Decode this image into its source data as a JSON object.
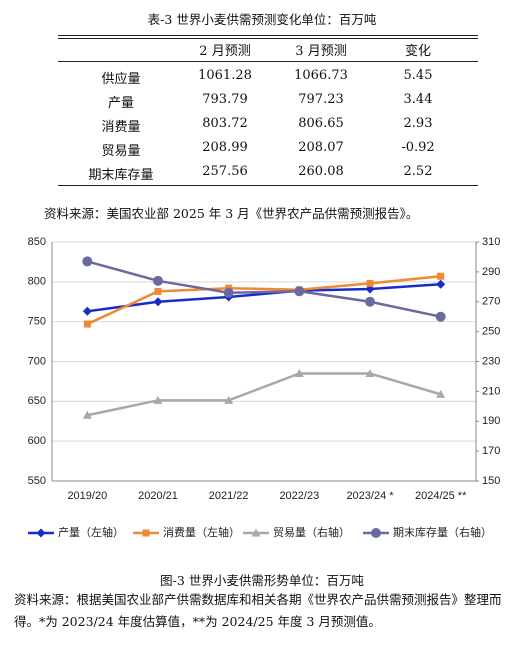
{
  "table": {
    "title": "表-3 世界小麦供需预测变化单位：百万吨",
    "columns": [
      "2 月预测",
      "3 月预测",
      "变化"
    ],
    "rows": [
      {
        "label": "供应量",
        "values": [
          1061.28,
          1066.73,
          5.45
        ]
      },
      {
        "label": "产量",
        "values": [
          793.79,
          797.23,
          3.44
        ]
      },
      {
        "label": "消费量",
        "values": [
          803.72,
          806.65,
          2.93
        ]
      },
      {
        "label": "贸易量",
        "values": [
          208.99,
          208.07,
          -0.92
        ]
      },
      {
        "label": "期末库存量",
        "values": [
          257.56,
          260.08,
          2.52
        ]
      }
    ],
    "source": "资料来源：美国农业部 2025 年 3 月《世界农产品供需预测报告》。"
  },
  "chart_data": {
    "type": "line",
    "categories": [
      "2019/20",
      "2020/21",
      "2021/22",
      "2022/23",
      "2023/24 *",
      "2024/25 **"
    ],
    "series": [
      {
        "name": "产量（左轴）",
        "color": "#1a2bcc",
        "marker": "diamond",
        "values": [
          763,
          775,
          781,
          789,
          791,
          797
        ]
      },
      {
        "name": "消费量（左轴）",
        "color": "#ee8a33",
        "marker": "square",
        "values": [
          747,
          788,
          792,
          790,
          798,
          807
        ]
      },
      {
        "name": "贸易量（右轴）",
        "color": "#a8a8a8",
        "marker": "triangle",
        "axis": "y2",
        "values": [
          194,
          204,
          204,
          222,
          222,
          208
        ]
      },
      {
        "name": "期末库存量（右轴）",
        "color": "#6a6b9c",
        "marker": "circle",
        "axis": "y2",
        "values": [
          297,
          284,
          276,
          277,
          270,
          260
        ]
      }
    ],
    "ylim": [
      550,
      850
    ],
    "yticks": [
      550,
      600,
      650,
      700,
      750,
      800,
      850
    ],
    "y2lim": [
      150,
      310
    ],
    "y2ticks": [
      150,
      170,
      190,
      210,
      230,
      250,
      270,
      290,
      310
    ],
    "grid": true
  },
  "caption": "图-3 世界小麦供需形势单位：百万吨",
  "note": "资料来源：根据美国农业部产供需数据库和相关各期《世界农产品供需预测报告》整理而得。*为 2023/24 年度估算值，**为 2024/25 年度 3 月预测值。"
}
